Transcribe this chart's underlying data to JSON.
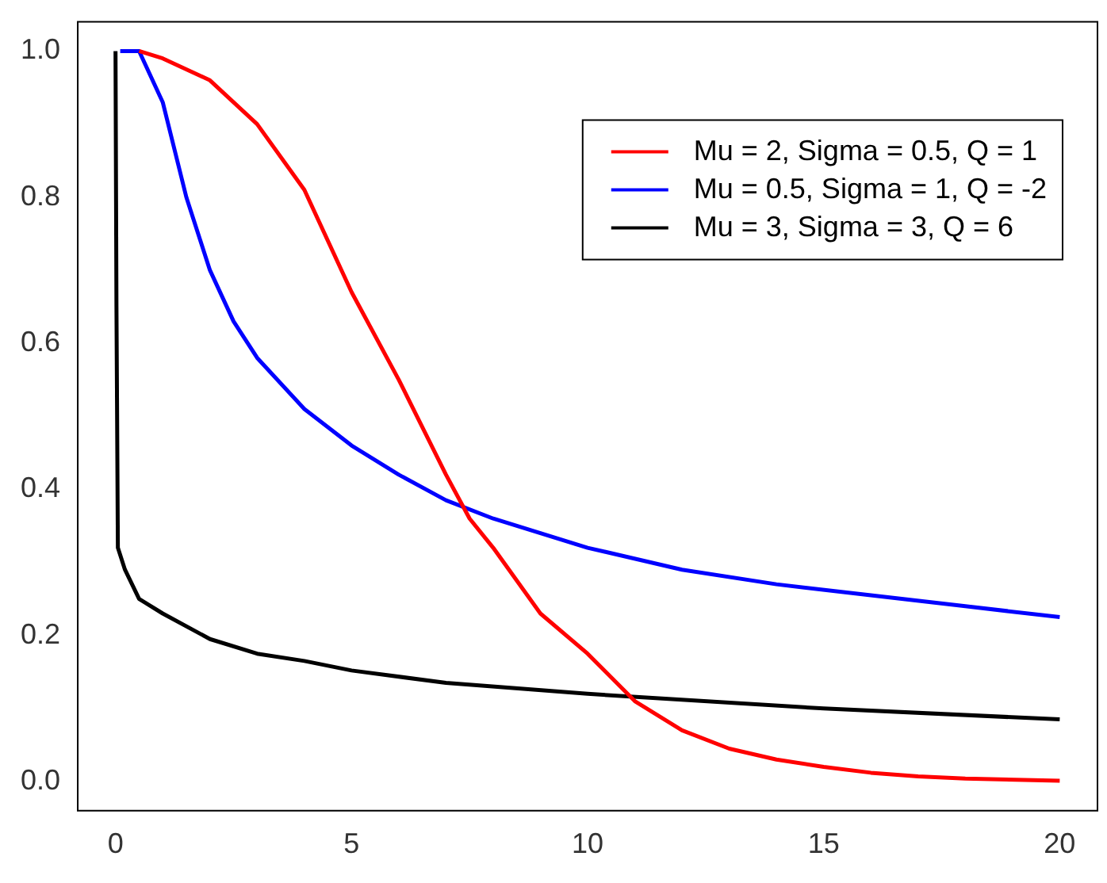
{
  "chart_data": {
    "type": "line",
    "xlim": [
      -0.8,
      20.8
    ],
    "xticks": [
      0,
      5,
      10,
      15,
      20
    ],
    "ylim": [
      -0.04,
      1.04
    ],
    "yticks": [
      {
        "value": 0,
        "label": "0.0"
      },
      0.2,
      0.4,
      0.6,
      0.8,
      {
        "value": 1,
        "label": "1.0"
      }
    ],
    "grid": false,
    "legend": "top right",
    "marker": "none",
    "line_style": "solid",
    "series": [
      {
        "name": "Mu = 2, Sigma = 0.5, Q = 1",
        "color": "#ff0000",
        "x": [
          0.5,
          1,
          2,
          3,
          4,
          5,
          6,
          7,
          7.5,
          8,
          9,
          10,
          11,
          12,
          13,
          14,
          15,
          16,
          17,
          18,
          20
        ],
        "values": [
          1.0,
          0.99,
          0.96,
          0.9,
          0.81,
          0.67,
          0.55,
          0.42,
          0.36,
          0.32,
          0.23,
          0.175,
          0.11,
          0.07,
          0.045,
          0.03,
          0.02,
          0.012,
          0.007,
          0.004,
          0.001
        ]
      },
      {
        "name": "Mu = 0.5, Sigma = 1, Q = -2",
        "color": "#0000ff",
        "x": [
          0.1,
          0.5,
          1,
          1.5,
          2,
          2.5,
          3,
          4,
          5,
          6,
          7,
          8,
          9,
          10,
          12,
          14,
          16,
          18,
          20
        ],
        "values": [
          1.0,
          1.0,
          0.93,
          0.8,
          0.7,
          0.63,
          0.58,
          0.51,
          0.46,
          0.42,
          0.385,
          0.36,
          0.34,
          0.32,
          0.29,
          0.27,
          0.255,
          0.24,
          0.225
        ]
      },
      {
        "name": "Mu = 3, Sigma = 3, Q = 6",
        "color": "#000000",
        "x": [
          0,
          0.02,
          0.05,
          0.2,
          0.5,
          1,
          2,
          3,
          4,
          5,
          7,
          10,
          15,
          20
        ],
        "values": [
          1.0,
          0.65,
          0.32,
          0.29,
          0.25,
          0.23,
          0.195,
          0.175,
          0.165,
          0.152,
          0.135,
          0.12,
          0.1,
          0.085
        ]
      }
    ]
  }
}
